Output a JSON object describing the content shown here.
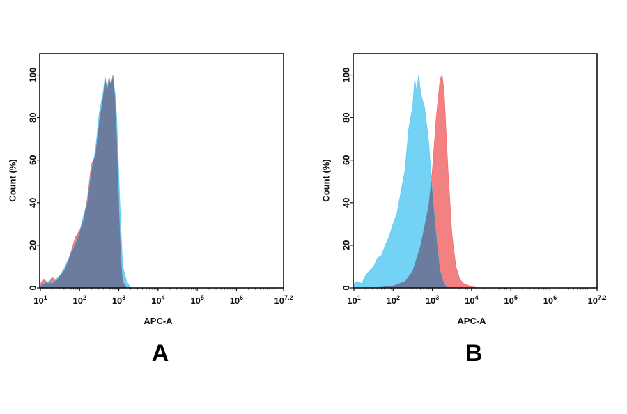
{
  "colors": {
    "treated": "#f26b6b",
    "control": "#5ccbf2",
    "overlap": "#6b7c9e",
    "axis": "#111111"
  },
  "chart_data": [
    {
      "type": "area",
      "panel_label": "A",
      "xlabel": "APC-A",
      "ylabel": "Count  (%)",
      "xscale": "log",
      "xlim": [
        10,
        15848932
      ],
      "ylim": [
        0,
        110
      ],
      "yticks": [
        0,
        20,
        40,
        60,
        80,
        100
      ],
      "xticks": [
        {
          "base": "10",
          "exp": "1",
          "value": 10
        },
        {
          "base": "10",
          "exp": "2",
          "value": 100
        },
        {
          "base": "10",
          "exp": "3",
          "value": 1000
        },
        {
          "base": "10",
          "exp": "4",
          "value": 10000
        },
        {
          "base": "10",
          "exp": "5",
          "value": 100000
        },
        {
          "base": "10",
          "exp": "6",
          "value": 1000000
        },
        {
          "base": "10",
          "exp": "7.2",
          "value": 15848932
        }
      ],
      "grid": false,
      "series": [
        {
          "color_key": "treated",
          "x": [
            10,
            12.6,
            15.8,
            20,
            25,
            32,
            40,
            50,
            63,
            79,
            100,
            126,
            158,
            200,
            251,
            316,
            398,
            447,
            501,
            562,
            631,
            708,
            794,
            891,
            1000,
            1122,
            1259,
            1585
          ],
          "y": [
            2,
            4,
            2,
            5,
            3,
            6,
            8,
            12,
            18,
            24,
            27,
            32,
            42,
            58,
            62,
            78,
            90,
            99,
            93,
            99,
            95,
            100,
            90,
            70,
            40,
            15,
            3,
            0
          ]
        },
        {
          "color_key": "control",
          "x": [
            10,
            12.6,
            15.8,
            20,
            25,
            32,
            40,
            50,
            63,
            79,
            100,
            126,
            158,
            200,
            251,
            316,
            398,
            447,
            501,
            562,
            631,
            708,
            794,
            891,
            1000,
            1122,
            1259,
            1585,
            1995
          ],
          "y": [
            1,
            2,
            3,
            2,
            4,
            6,
            9,
            13,
            17,
            21,
            26,
            34,
            40,
            55,
            64,
            82,
            92,
            99,
            92,
            98,
            96,
            99,
            92,
            78,
            52,
            28,
            10,
            3,
            0
          ]
        }
      ]
    },
    {
      "type": "area",
      "panel_label": "B",
      "xlabel": "APC-A",
      "ylabel": "Count  (%)",
      "xscale": "log",
      "xlim": [
        10,
        15848932
      ],
      "ylim": [
        0,
        110
      ],
      "yticks": [
        0,
        20,
        40,
        60,
        80,
        100
      ],
      "xticks": [
        {
          "base": "10",
          "exp": "1",
          "value": 10
        },
        {
          "base": "10",
          "exp": "2",
          "value": 100
        },
        {
          "base": "10",
          "exp": "3",
          "value": 1000
        },
        {
          "base": "10",
          "exp": "4",
          "value": 10000
        },
        {
          "base": "10",
          "exp": "5",
          "value": 100000
        },
        {
          "base": "10",
          "exp": "6",
          "value": 1000000
        },
        {
          "base": "10",
          "exp": "7.2",
          "value": 15848932
        }
      ],
      "grid": false,
      "series": [
        {
          "color_key": "treated",
          "x": [
            32,
            100,
            200,
            316,
            501,
            794,
            1000,
            1259,
            1585,
            1778,
            1995,
            2512,
            3162,
            3981,
            5012,
            6310,
            10000,
            15849
          ],
          "y": [
            0,
            1,
            3,
            8,
            20,
            38,
            55,
            80,
            98,
            100,
            92,
            55,
            25,
            10,
            4,
            2,
            0.5,
            0
          ]
        },
        {
          "color_key": "control",
          "x": [
            10,
            12.6,
            15.8,
            20,
            25,
            32,
            40,
            50,
            63,
            79,
            100,
            126,
            158,
            200,
            251,
            316,
            355,
            398,
            447,
            501,
            562,
            631,
            794,
            1000,
            1259,
            1585,
            1995,
            2512
          ],
          "y": [
            2,
            3,
            2,
            6,
            8,
            10,
            14,
            15,
            20,
            24,
            30,
            35,
            45,
            55,
            75,
            85,
            98,
            92,
            100,
            92,
            88,
            85,
            70,
            45,
            25,
            8,
            2,
            0
          ]
        }
      ]
    }
  ]
}
